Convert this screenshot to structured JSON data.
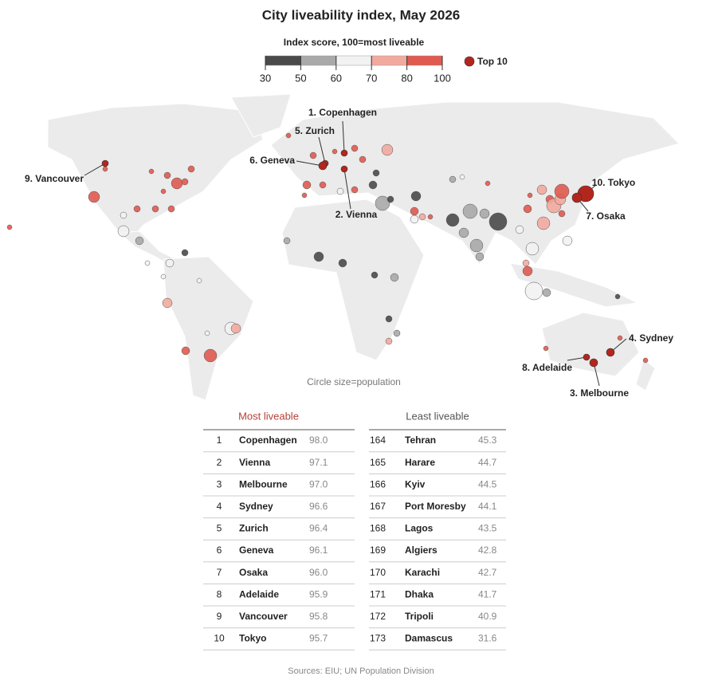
{
  "title": "City liveability index, May 2026",
  "legend": {
    "title": "Index score, 100=most liveable",
    "ticks": [
      30,
      50,
      60,
      70,
      80,
      100
    ],
    "colors": [
      "#4a4a4a",
      "#a9a9a9",
      "#f2f2f2",
      "#f2aa9e",
      "#e05a50"
    ],
    "top10_label": "Top 10",
    "top10_color": "#b3261e"
  },
  "annotations": [
    "1. Copenhagen",
    "5. Zurich",
    "6. Geneva",
    "2. Vienna",
    "9. Vancouver",
    "10. Tokyo",
    "7. Osaka",
    "4. Sydney",
    "8. Adelaide",
    "3. Melbourne"
  ],
  "size_note": "Circle size=population",
  "tables": [
    {
      "title": "Most liveable",
      "rows": [
        [
          1,
          "Copenhagen",
          "98.0"
        ],
        [
          2,
          "Vienna",
          "97.1"
        ],
        [
          3,
          "Melbourne",
          "97.0"
        ],
        [
          4,
          "Sydney",
          "96.6"
        ],
        [
          5,
          "Zurich",
          "96.4"
        ],
        [
          6,
          "Geneva",
          "96.1"
        ],
        [
          7,
          "Osaka",
          "96.0"
        ],
        [
          8,
          "Adelaide",
          "95.9"
        ],
        [
          9,
          "Vancouver",
          "95.8"
        ],
        [
          10,
          "Tokyo",
          "95.7"
        ]
      ]
    },
    {
      "title": "Least liveable",
      "rows": [
        [
          164,
          "Tehran",
          "45.3"
        ],
        [
          165,
          "Harare",
          "44.7"
        ],
        [
          166,
          "Kyiv",
          "44.5"
        ],
        [
          167,
          "Port Moresby",
          "44.1"
        ],
        [
          168,
          "Lagos",
          "43.5"
        ],
        [
          169,
          "Algiers",
          "42.8"
        ],
        [
          170,
          "Karachi",
          "42.7"
        ],
        [
          171,
          "Dhaka",
          "41.7"
        ],
        [
          172,
          "Tripoli",
          "40.9"
        ],
        [
          173,
          "Damascus",
          "31.6"
        ]
      ]
    }
  ],
  "source": "Sources: EIU; UN Population Division"
}
